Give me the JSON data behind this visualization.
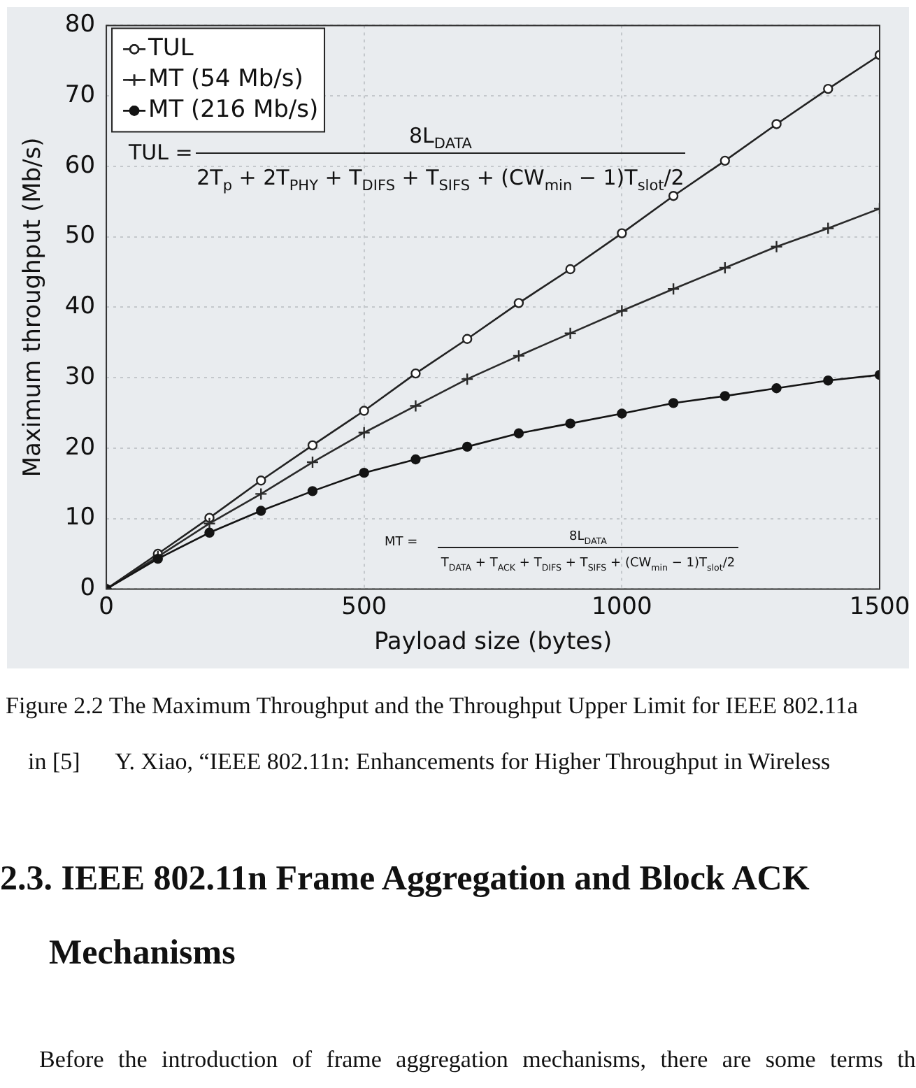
{
  "chart_data": {
    "type": "line",
    "xlabel": "Payload size (bytes)",
    "ylabel": "Maximum throughput (Mb/s)",
    "x": [
      0,
      100,
      200,
      300,
      400,
      500,
      600,
      700,
      800,
      900,
      1000,
      1100,
      1200,
      1300,
      1400,
      1500
    ],
    "series": [
      {
        "name": "TUL",
        "color": "#222222",
        "marker": "circle",
        "values": [
          0,
          5,
          10.1,
          15.4,
          20.4,
          25.3,
          30.6,
          35.5,
          40.6,
          45.4,
          50.5,
          55.8,
          60.8,
          66,
          71,
          75.8
        ]
      },
      {
        "name": "MT (54 Mb/s)",
        "color": "#2a2a2a",
        "marker": "cross",
        "values": [
          0,
          4.6,
          9.3,
          13.5,
          18,
          22.2,
          26,
          29.8,
          33.1,
          36.3,
          39.5,
          42.6,
          45.6,
          48.6,
          51.2,
          54
        ]
      },
      {
        "name": "MT (216 Mb/s)",
        "color": "#141414",
        "marker": "circle",
        "values": [
          0,
          4.3,
          8,
          11.1,
          13.9,
          16.5,
          18.4,
          20.2,
          22.1,
          23.5,
          24.9,
          26.4,
          27.4,
          28.5,
          29.6,
          30.4
        ]
      }
    ],
    "xlim": [
      0,
      1500
    ],
    "xticks": [
      0,
      500,
      1000,
      1500
    ],
    "ylim": [
      0,
      80
    ],
    "yticks": [
      0,
      10,
      20,
      30,
      40,
      50,
      60,
      70,
      80
    ],
    "grid": true,
    "legend": "top left",
    "line_style": "solid",
    "annotations": [
      "TUL =",
      "8L$_{DATA}$",
      "2T$_{p}$ + 2T$_{PHY}$ + T$_{DIFS}$ + T$_{SIFS}$ + (CW$_{min}$ − 1)T$_{slot}$/2",
      "MT =",
      "8L$_{DATA}$",
      "T$_{DATA}$ + T$_{ACK}$ + T$_{DIFS}$ + T$_{SIFS}$ + (CW$_{min}$ − 1)T$_{slot}$/2",
      "Figure 2.2 The Maximum Throughput and the Throughput Upper Limit for IEEE 802.11a",
      "in [5]      Y. Xiao, “IEEE 802.11n: Enhancements for Higher Throughput in Wireless",
      "2.3. IEEE 802.11n Frame Aggregation and Block ACK",
      "Mechanisms",
      "Before the introduction of frame aggregation mechanisms, there are some terms th"
    ]
  }
}
